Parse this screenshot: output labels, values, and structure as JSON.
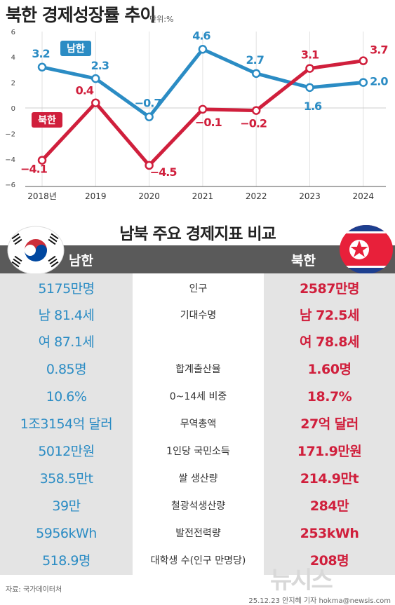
{
  "title": "북한 경제성장률 추이",
  "unit": "단위:%",
  "chart_data": {
    "type": "line",
    "categories": [
      "2018년",
      "2019",
      "2020",
      "2021",
      "2022",
      "2023",
      "2024"
    ],
    "series": [
      {
        "name": "남한",
        "color": "#2b8cc4",
        "values": [
          3.2,
          2.3,
          -0.7,
          4.6,
          2.7,
          1.6,
          2.0
        ],
        "labels": [
          "3.2",
          "2.3",
          "−0.7",
          "4.6",
          "2.7",
          "1.6",
          "2.0"
        ]
      },
      {
        "name": "북한",
        "color": "#d01f3c",
        "values": [
          -4.1,
          0.4,
          -4.5,
          -0.1,
          -0.2,
          3.1,
          3.7
        ],
        "labels": [
          "−4.1",
          "0.4",
          "−4.5",
          "−0.1",
          "−0.2",
          "3.1",
          "3.7"
        ]
      }
    ],
    "yticks": [
      "6",
      "4",
      "2",
      "0",
      "−2",
      "−4",
      "−6"
    ],
    "ylim": [
      -6,
      6
    ],
    "grid": true
  },
  "comparison": {
    "title": "남북 주요 경제지표 비교",
    "left_header": "남한",
    "right_header": "북한",
    "rows": [
      {
        "s": "5175만명",
        "l": "인구",
        "n": "2587만명"
      },
      {
        "s": "남 81.4세",
        "l": "기대수명",
        "n": "남 72.5세"
      },
      {
        "s": "여 87.1세",
        "l": "",
        "n": "여 78.8세"
      },
      {
        "s": "0.85명",
        "l": "합계출산율",
        "n": "1.60명"
      },
      {
        "s": "10.6%",
        "l": "0~14세 비중",
        "n": "18.7%"
      },
      {
        "s": "1조3154억 달러",
        "l": "무역총액",
        "n": "27억 달러"
      },
      {
        "s": "5012만원",
        "l": "1인당 국민소득",
        "n": "171.9만원"
      },
      {
        "s": "358.5만t",
        "l": "쌀 생산량",
        "n": "214.9만t"
      },
      {
        "s": "39만",
        "l": "철광석생산량",
        "n": "284만"
      },
      {
        "s": "5956kWh",
        "l": "발전전력량",
        "n": "253kWh"
      },
      {
        "s": "518.9명",
        "l": "대학생 수(인구 만명당)",
        "n": "208명"
      }
    ]
  },
  "source": "자료: 국가데이터처",
  "credit": "25.12.23 안지혜 기자 hokma@newsis.com",
  "watermark": "뉴시스",
  "colors": {
    "south": "#2b8cc4",
    "north": "#d01f3c",
    "band": "#5a5a5a"
  }
}
